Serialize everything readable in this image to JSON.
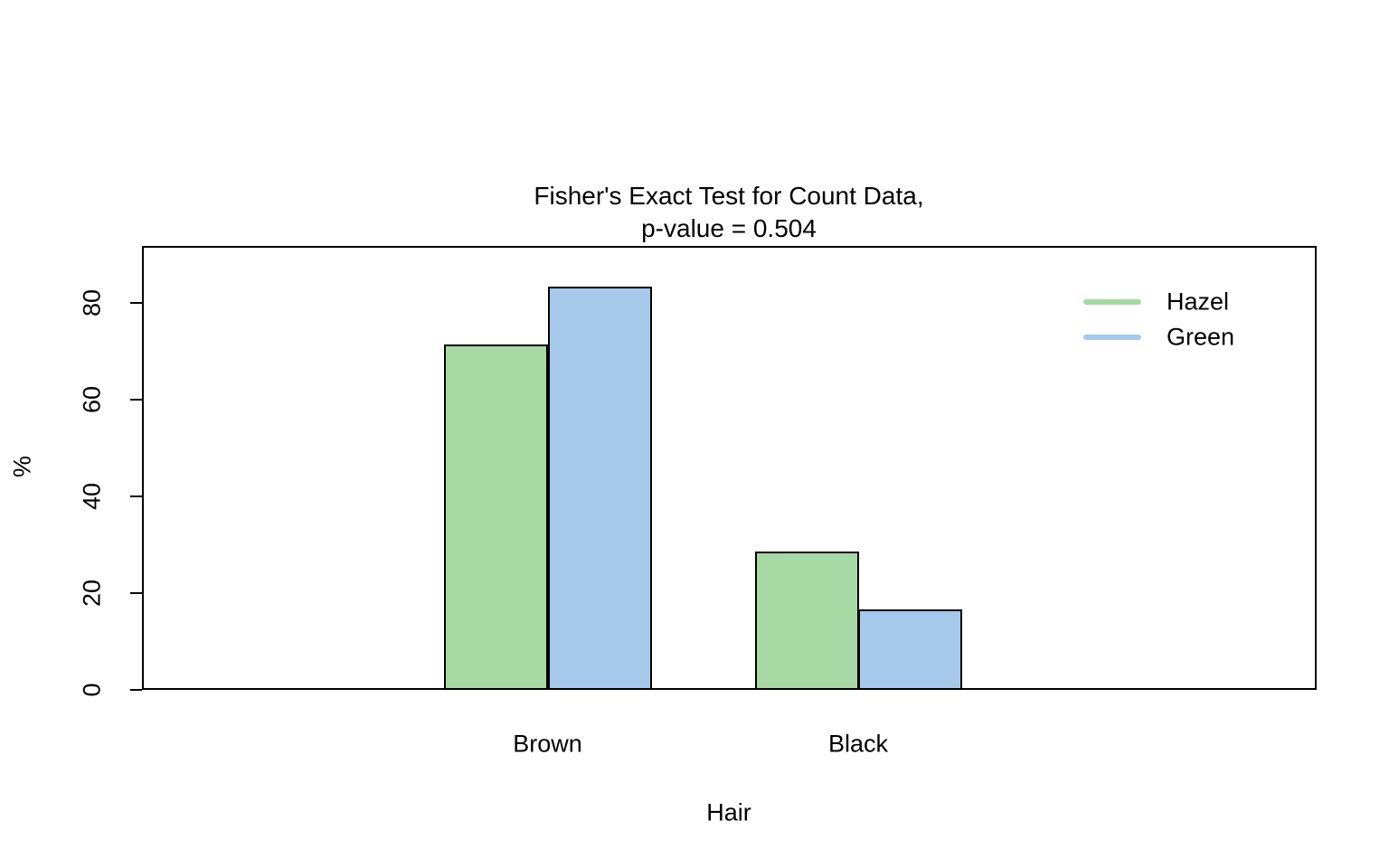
{
  "title": {
    "line1": "Fisher's Exact Test for Count Data,",
    "line2": "p-value = 0.504"
  },
  "chart_data": {
    "type": "bar",
    "grouped": true,
    "categories": [
      "Brown",
      "Black"
    ],
    "series": [
      {
        "name": "Hazel",
        "color": "#a8d8a4",
        "values": [
          71.4,
          28.6
        ]
      },
      {
        "name": "Green",
        "color": "#a6c8eb",
        "values": [
          83.3,
          16.7
        ]
      }
    ],
    "title": "Fisher's Exact Test for Count Data,\np-value = 0.504",
    "xlabel": "Hair",
    "ylabel": "%",
    "ylim": [
      0,
      91.8
    ],
    "yticks": [
      0,
      20,
      40,
      60,
      80
    ],
    "grid": false,
    "bar_border_color": "#000000",
    "legend_position": "top-right",
    "legend_style": "line-swatches"
  }
}
